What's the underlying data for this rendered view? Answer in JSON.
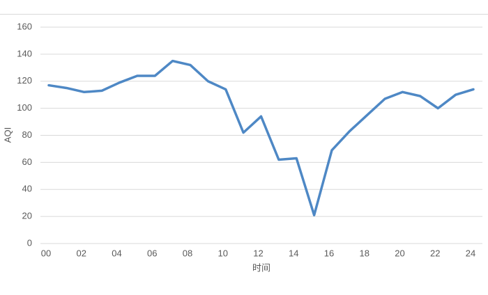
{
  "chart_data": {
    "type": "line",
    "x_label": "时间",
    "y_label": "AQI",
    "categories": [
      "00",
      null,
      "02",
      null,
      "04",
      null,
      "06",
      null,
      "08",
      null,
      "10",
      null,
      "12",
      null,
      "14",
      null,
      "16",
      null,
      "18",
      null,
      "20",
      null,
      "22",
      null,
      "24"
    ],
    "series": [
      {
        "name": "AQI",
        "color": "#4e88c5",
        "values": [
          117,
          115,
          112,
          113,
          119,
          124,
          124,
          135,
          132,
          120,
          114,
          82,
          94,
          62,
          63,
          21,
          69,
          83,
          95,
          107,
          112,
          109,
          100,
          110,
          114
        ]
      }
    ],
    "ylim": [
      0,
      160
    ],
    "yticks": [
      0,
      20,
      40,
      60,
      80,
      100,
      120,
      140,
      160
    ],
    "grid": true
  }
}
